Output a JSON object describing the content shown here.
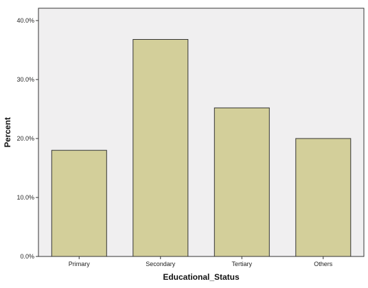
{
  "chart_data": {
    "type": "bar",
    "categories": [
      "Primary",
      "Secondary",
      "Tertiary",
      "Others"
    ],
    "values": [
      18.0,
      36.8,
      25.2,
      20.0
    ],
    "xlabel": "Educational_Status",
    "ylabel": "Percent",
    "ylim": [
      0,
      40
    ],
    "yticks": [
      "0.0%",
      "10.0%",
      "20.0%",
      "30.0%",
      "40.0%"
    ],
    "ytick_values": [
      0,
      10,
      20,
      30,
      40
    ],
    "grid": false,
    "legend": "none",
    "colors": {
      "plot_background": "#f0eff0",
      "bar_fill": "#d3cf9a",
      "bar_stroke": "#333333",
      "axis": "#333333"
    }
  }
}
